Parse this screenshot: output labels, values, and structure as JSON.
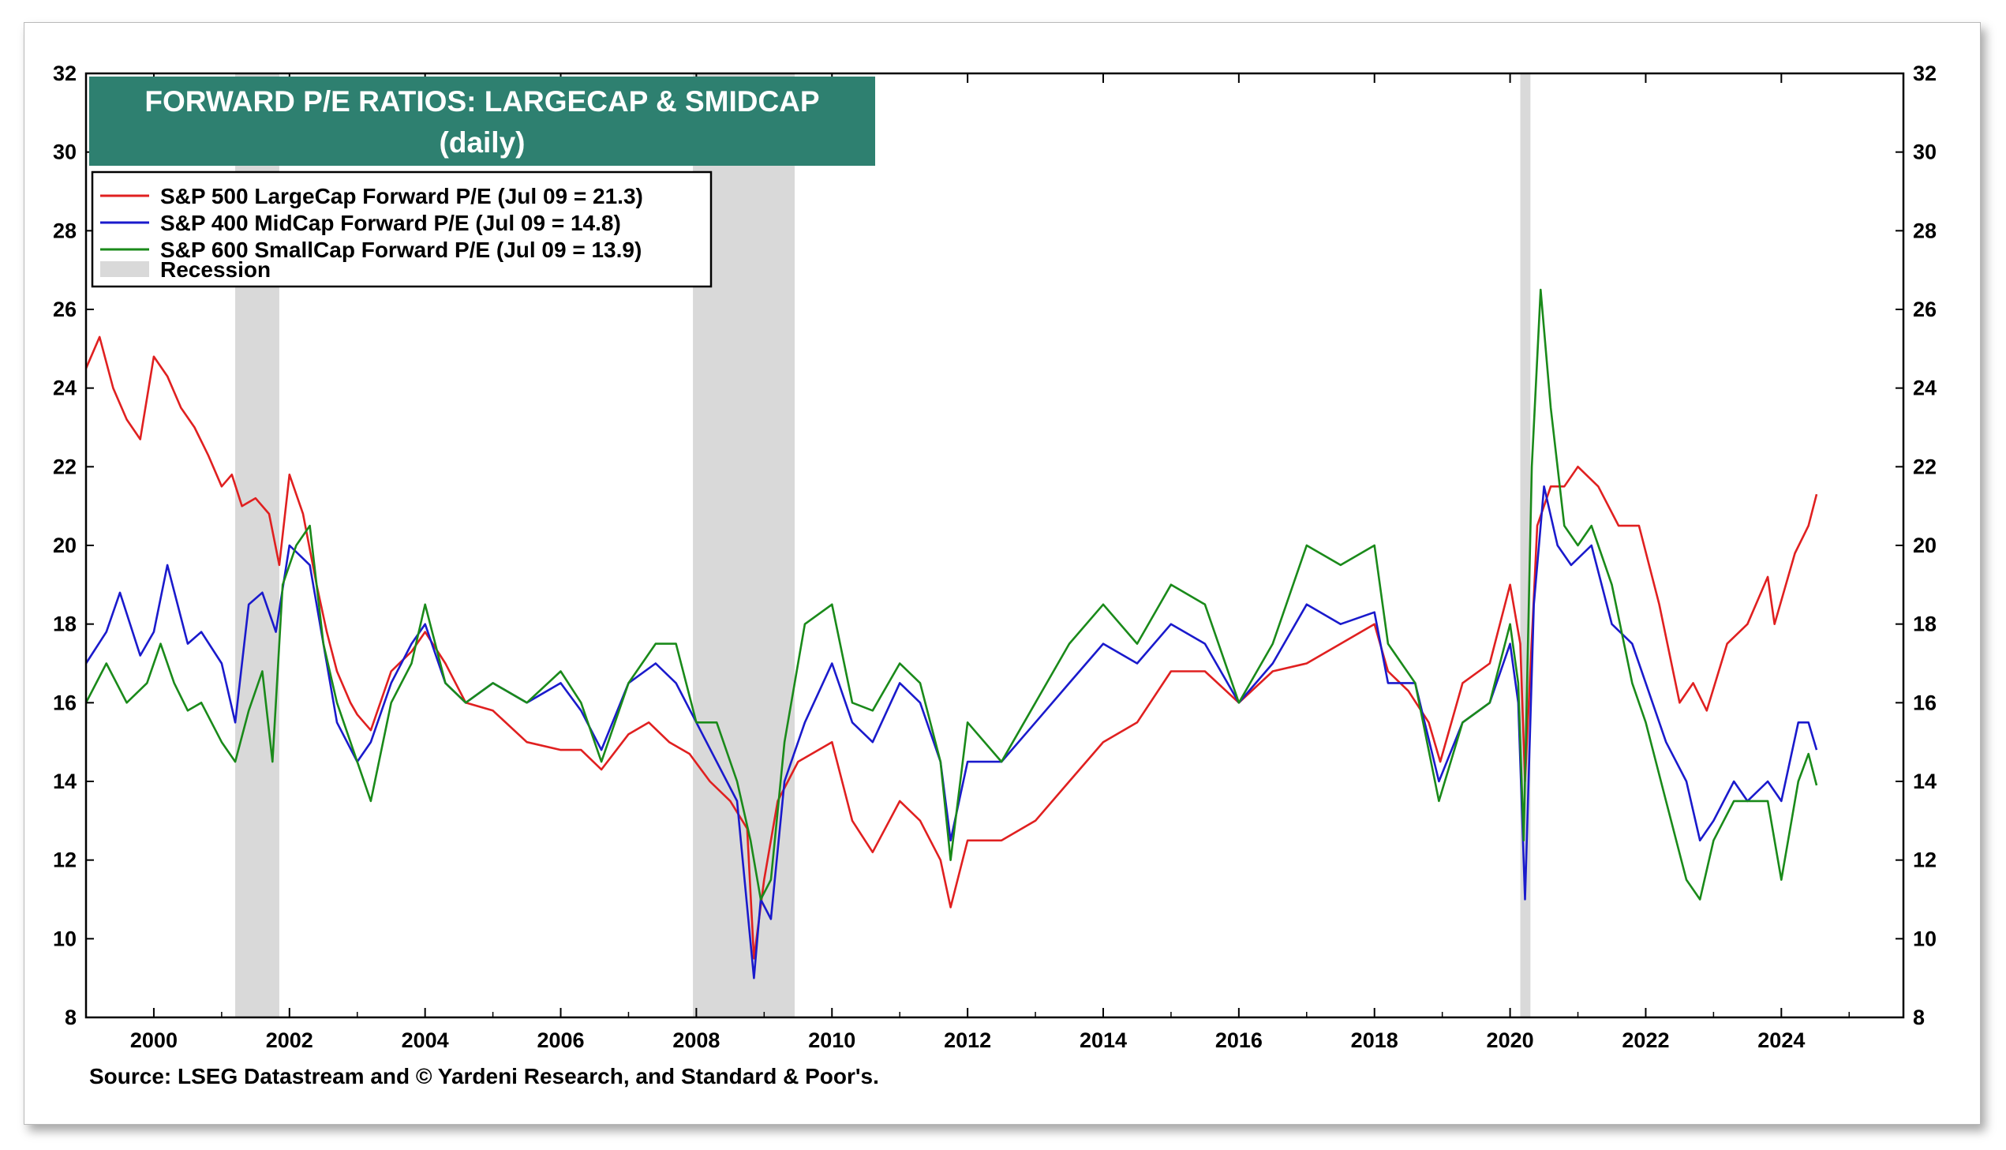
{
  "chart_data": {
    "type": "line",
    "title": "FORWARD P/E RATIOS: LARGECAP & SMIDCAP",
    "subtitle": "(daily)",
    "source": "Source: LSEG Datastream and © Yardeni Research, and Standard & Poor's.",
    "xlim": [
      1999.0,
      2025.8
    ],
    "ylim": [
      8,
      32
    ],
    "x_ticks": [
      "2000",
      "2002",
      "2004",
      "2006",
      "2008",
      "2010",
      "2012",
      "2014",
      "2016",
      "2018",
      "2020",
      "2022",
      "2024"
    ],
    "y_ticks": [
      "8",
      "10",
      "12",
      "14",
      "16",
      "18",
      "20",
      "22",
      "24",
      "26",
      "28",
      "30",
      "32"
    ],
    "grid": false,
    "legend_position": "top-left",
    "recessions": [
      {
        "start": 2001.2,
        "end": 2001.85
      },
      {
        "start": 2007.95,
        "end": 2009.45
      },
      {
        "start": 2020.15,
        "end": 2020.3
      }
    ],
    "recession_label": "Recession",
    "recession_color": "#d9d9d9",
    "series": [
      {
        "name": "S&P 500 LargeCap Forward P/E (Jul 09 = 21.3)",
        "color": "#e02020",
        "x": [
          1999.0,
          1999.2,
          1999.4,
          1999.6,
          1999.8,
          2000.0,
          2000.2,
          2000.4,
          2000.6,
          2000.8,
          2001.0,
          2001.15,
          2001.3,
          2001.5,
          2001.7,
          2001.85,
          2002.0,
          2002.2,
          2002.4,
          2002.55,
          2002.7,
          2002.9,
          2003.0,
          2003.2,
          2003.5,
          2003.8,
          2004.0,
          2004.3,
          2004.6,
          2005.0,
          2005.5,
          2006.0,
          2006.3,
          2006.6,
          2007.0,
          2007.3,
          2007.6,
          2007.9,
          2008.2,
          2008.5,
          2008.75,
          2008.85,
          2009.0,
          2009.2,
          2009.5,
          2010.0,
          2010.3,
          2010.6,
          2011.0,
          2011.3,
          2011.6,
          2011.75,
          2012.0,
          2012.5,
          2013.0,
          2013.5,
          2014.0,
          2014.5,
          2015.0,
          2015.5,
          2016.0,
          2016.5,
          2017.0,
          2017.5,
          2018.0,
          2018.2,
          2018.5,
          2018.8,
          2018.97,
          2019.3,
          2019.7,
          2020.0,
          2020.15,
          2020.22,
          2020.4,
          2020.6,
          2020.8,
          2021.0,
          2021.3,
          2021.6,
          2021.9,
          2022.2,
          2022.5,
          2022.7,
          2022.9,
          2023.2,
          2023.5,
          2023.8,
          2023.9,
          2024.2,
          2024.4,
          2024.52
        ],
        "y": [
          24.5,
          25.3,
          24.0,
          23.2,
          22.7,
          24.8,
          24.3,
          23.5,
          23.0,
          22.3,
          21.5,
          21.8,
          21.0,
          21.2,
          20.8,
          19.5,
          21.8,
          20.8,
          19.0,
          17.8,
          16.8,
          16.0,
          15.7,
          15.3,
          16.8,
          17.3,
          17.8,
          17.0,
          16.0,
          15.8,
          15.0,
          14.8,
          14.8,
          14.3,
          15.2,
          15.5,
          15.0,
          14.7,
          14.0,
          13.5,
          12.8,
          9.5,
          11.5,
          13.5,
          14.5,
          15.0,
          13.0,
          12.2,
          13.5,
          13.0,
          12.0,
          10.8,
          12.5,
          12.5,
          13.0,
          14.0,
          15.0,
          15.5,
          16.8,
          16.8,
          16.0,
          16.8,
          17.0,
          17.5,
          18.0,
          16.8,
          16.3,
          15.5,
          14.5,
          16.5,
          17.0,
          19.0,
          17.5,
          14.0,
          20.5,
          21.5,
          21.5,
          22.0,
          21.5,
          20.5,
          20.5,
          18.5,
          16.0,
          16.5,
          15.8,
          17.5,
          18.0,
          19.2,
          18.0,
          19.8,
          20.5,
          21.3
        ]
      },
      {
        "name": "S&P 400 MidCap Forward P/E (Jul 09 = 14.8)",
        "color": "#1a1acc",
        "x": [
          1999.0,
          1999.3,
          1999.5,
          1999.8,
          2000.0,
          2000.2,
          2000.5,
          2000.7,
          2001.0,
          2001.2,
          2001.4,
          2001.6,
          2001.8,
          2002.0,
          2002.3,
          2002.5,
          2002.7,
          2003.0,
          2003.2,
          2003.5,
          2003.8,
          2004.0,
          2004.3,
          2004.6,
          2005.0,
          2005.5,
          2006.0,
          2006.3,
          2006.6,
          2007.0,
          2007.4,
          2007.7,
          2008.0,
          2008.3,
          2008.6,
          2008.85,
          2008.95,
          2009.1,
          2009.3,
          2009.6,
          2010.0,
          2010.3,
          2010.6,
          2011.0,
          2011.3,
          2011.6,
          2011.75,
          2012.0,
          2012.5,
          2013.0,
          2013.5,
          2014.0,
          2014.5,
          2015.0,
          2015.5,
          2016.0,
          2016.5,
          2017.0,
          2017.5,
          2018.0,
          2018.2,
          2018.6,
          2018.95,
          2019.3,
          2019.7,
          2020.0,
          2020.12,
          2020.22,
          2020.35,
          2020.5,
          2020.7,
          2020.9,
          2021.2,
          2021.5,
          2021.8,
          2022.0,
          2022.3,
          2022.6,
          2022.8,
          2023.0,
          2023.3,
          2023.5,
          2023.8,
          2024.0,
          2024.25,
          2024.4,
          2024.52
        ],
        "y": [
          17.0,
          17.8,
          18.8,
          17.2,
          17.8,
          19.5,
          17.5,
          17.8,
          17.0,
          15.5,
          18.5,
          18.8,
          17.8,
          20.0,
          19.5,
          17.5,
          15.5,
          14.5,
          15.0,
          16.5,
          17.5,
          18.0,
          16.5,
          16.0,
          16.5,
          16.0,
          16.5,
          15.8,
          14.8,
          16.5,
          17.0,
          16.5,
          15.5,
          14.5,
          13.5,
          9.0,
          11.0,
          10.5,
          14.0,
          15.5,
          17.0,
          15.5,
          15.0,
          16.5,
          16.0,
          14.5,
          12.5,
          14.5,
          14.5,
          15.5,
          16.5,
          17.5,
          17.0,
          18.0,
          17.5,
          16.0,
          17.0,
          18.5,
          18.0,
          18.3,
          16.5,
          16.5,
          14.0,
          15.5,
          16.0,
          17.5,
          16.0,
          11.0,
          18.5,
          21.5,
          20.0,
          19.5,
          20.0,
          18.0,
          17.5,
          16.5,
          15.0,
          14.0,
          12.5,
          13.0,
          14.0,
          13.5,
          14.0,
          13.5,
          15.5,
          15.5,
          14.8
        ]
      },
      {
        "name": "S&P 600 SmallCap Forward P/E (Jul 09 = 13.9)",
        "color": "#1a8a1a",
        "x": [
          1999.0,
          1999.3,
          1999.6,
          1999.9,
          2000.1,
          2000.3,
          2000.5,
          2000.7,
          2001.0,
          2001.2,
          2001.4,
          2001.6,
          2001.75,
          2001.9,
          2002.1,
          2002.3,
          2002.5,
          2002.7,
          2003.0,
          2003.2,
          2003.5,
          2003.8,
          2004.0,
          2004.3,
          2004.6,
          2005.0,
          2005.5,
          2006.0,
          2006.3,
          2006.6,
          2007.0,
          2007.4,
          2007.7,
          2008.0,
          2008.3,
          2008.6,
          2008.8,
          2008.95,
          2009.1,
          2009.3,
          2009.6,
          2010.0,
          2010.3,
          2010.6,
          2011.0,
          2011.3,
          2011.6,
          2011.75,
          2012.0,
          2012.5,
          2013.0,
          2013.5,
          2014.0,
          2014.5,
          2015.0,
          2015.5,
          2016.0,
          2016.5,
          2017.0,
          2017.5,
          2018.0,
          2018.2,
          2018.6,
          2018.95,
          2019.3,
          2019.7,
          2020.0,
          2020.12,
          2020.2,
          2020.32,
          2020.45,
          2020.6,
          2020.8,
          2021.0,
          2021.2,
          2021.5,
          2021.8,
          2022.0,
          2022.3,
          2022.6,
          2022.8,
          2023.0,
          2023.3,
          2023.5,
          2023.8,
          2024.0,
          2024.25,
          2024.4,
          2024.52
        ],
        "y": [
          16.0,
          17.0,
          16.0,
          16.5,
          17.5,
          16.5,
          15.8,
          16.0,
          15.0,
          14.5,
          15.8,
          16.8,
          14.5,
          19.0,
          20.0,
          20.5,
          17.5,
          16.0,
          14.5,
          13.5,
          16.0,
          17.0,
          18.5,
          16.5,
          16.0,
          16.5,
          16.0,
          16.8,
          16.0,
          14.5,
          16.5,
          17.5,
          17.5,
          15.5,
          15.5,
          14.0,
          12.5,
          11.0,
          11.5,
          15.0,
          18.0,
          18.5,
          16.0,
          15.8,
          17.0,
          16.5,
          14.5,
          12.0,
          15.5,
          14.5,
          16.0,
          17.5,
          18.5,
          17.5,
          19.0,
          18.5,
          16.0,
          17.5,
          20.0,
          19.5,
          20.0,
          17.5,
          16.5,
          13.5,
          15.5,
          16.0,
          18.0,
          16.5,
          12.5,
          22.0,
          26.5,
          23.5,
          20.5,
          20.0,
          20.5,
          19.0,
          16.5,
          15.5,
          13.5,
          11.5,
          11.0,
          12.5,
          13.5,
          13.5,
          13.5,
          11.5,
          14.0,
          14.7,
          13.9
        ]
      }
    ]
  }
}
